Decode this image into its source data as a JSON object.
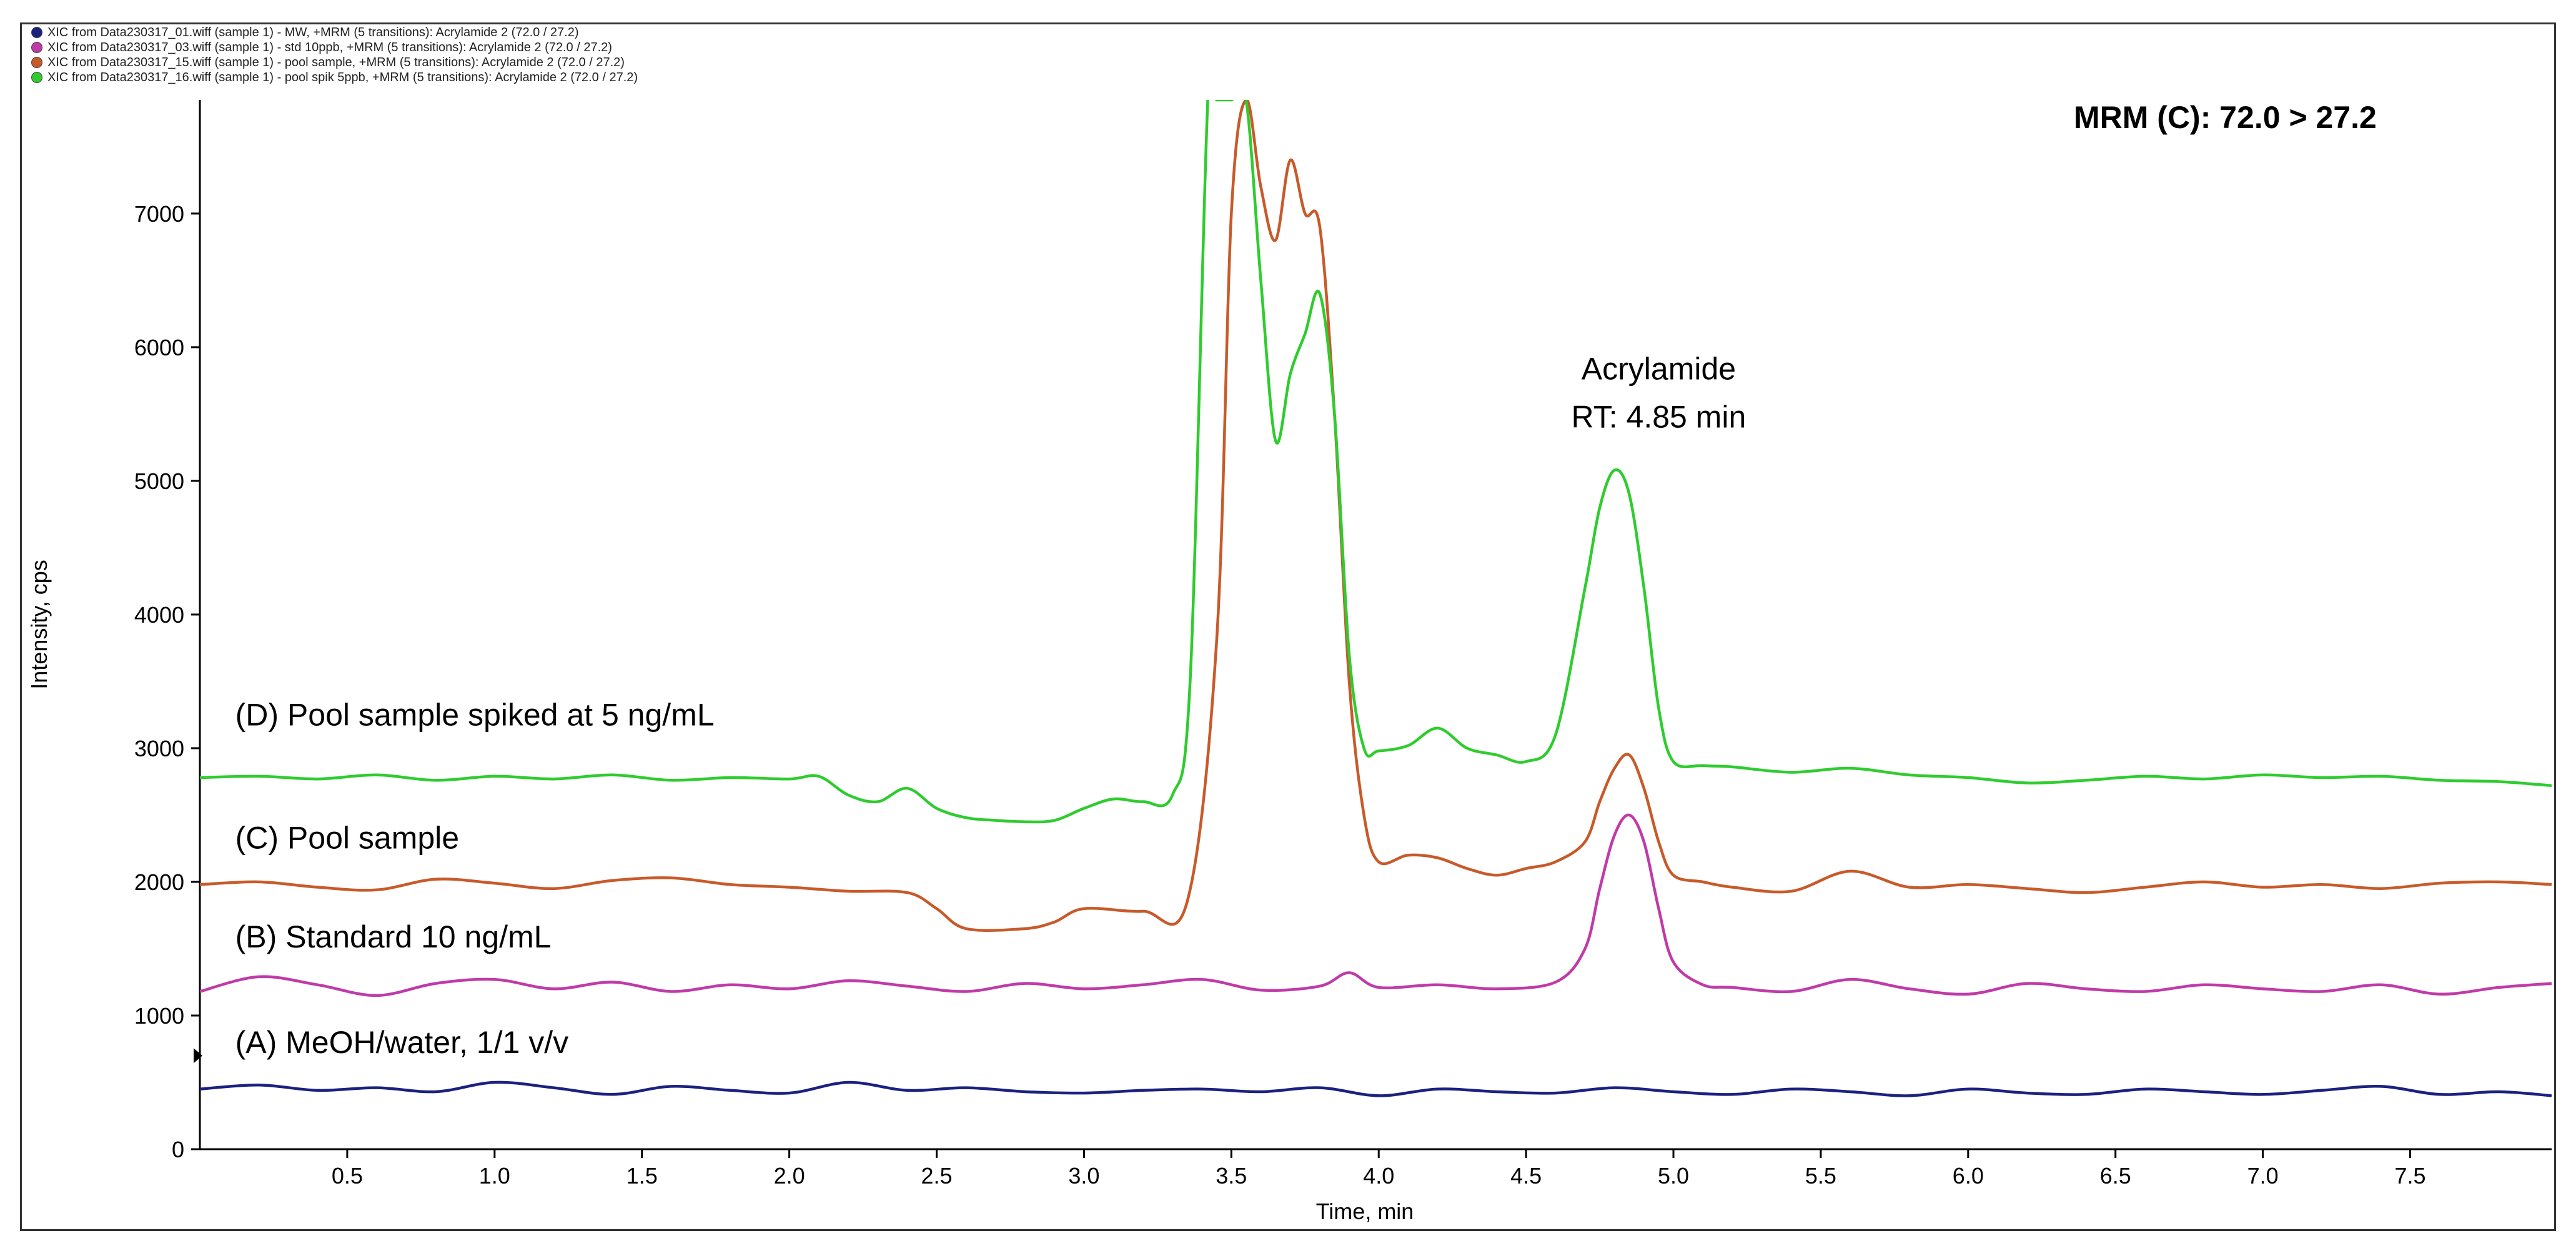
{
  "legend": [
    {
      "text": "XIC from Data230317_01.wiff (sample 1) - MW, +MRM (5 transitions): Acrylamide 2 (72.0 / 27.2)",
      "color": "#1a2180"
    },
    {
      "text": "XIC from Data230317_03.wiff (sample 1) - std 10ppb, +MRM (5 transitions): Acrylamide 2 (72.0 / 27.2)",
      "color": "#c03aa8"
    },
    {
      "text": "XIC from Data230317_15.wiff (sample 1) - pool sample, +MRM (5 transitions): Acrylamide 2 (72.0 / 27.2)",
      "color": "#c85a2a"
    },
    {
      "text": "XIC from Data230317_16.wiff (sample 1) - pool spik 5ppb, +MRM (5 transitions): Acrylamide 2 (72.0 / 27.2)",
      "color": "#2ecc2e"
    }
  ],
  "chart_data": {
    "type": "line",
    "title": "MRM (C): 72.0 > 27.2",
    "xlabel": "Time, min",
    "ylabel": "Intensity, cps",
    "xlim": [
      0,
      7.98
    ],
    "ylim": [
      0,
      7850
    ],
    "x_ticks": [
      0.5,
      1.0,
      1.5,
      2.0,
      2.5,
      3.0,
      3.5,
      4.0,
      4.5,
      5.0,
      5.5,
      6.0,
      6.5,
      7.0,
      7.5
    ],
    "x_tick_labels": [
      "0.5",
      "1.0",
      "1.5",
      "2.0",
      "2.5",
      "3.0",
      "3.5",
      "4.0",
      "4.5",
      "5.0",
      "5.5",
      "6.0",
      "6.5",
      "7.0",
      "7.5"
    ],
    "y_ticks": [
      0,
      1000,
      2000,
      3000,
      4000,
      5000,
      6000,
      7000
    ],
    "y_tick_labels": [
      "0",
      "1000",
      "2000",
      "3000",
      "4000",
      "5000",
      "6000",
      "7000"
    ],
    "grid": false,
    "series": [
      {
        "name": "(A) MeOH/water, 1/1 v/v",
        "color": "#1a2180",
        "x": [
          0,
          0.2,
          0.4,
          0.6,
          0.8,
          1.0,
          1.2,
          1.4,
          1.6,
          1.8,
          2.0,
          2.2,
          2.4,
          2.6,
          2.8,
          3.0,
          3.2,
          3.4,
          3.6,
          3.8,
          4.0,
          4.2,
          4.4,
          4.6,
          4.8,
          5.0,
          5.2,
          5.4,
          5.6,
          5.8,
          6.0,
          6.2,
          6.4,
          6.6,
          6.8,
          7.0,
          7.2,
          7.4,
          7.6,
          7.8,
          7.98
        ],
        "y": [
          450,
          480,
          440,
          460,
          430,
          500,
          460,
          410,
          470,
          440,
          420,
          500,
          440,
          460,
          430,
          420,
          440,
          450,
          430,
          460,
          400,
          450,
          430,
          420,
          460,
          430,
          410,
          450,
          430,
          400,
          450,
          420,
          410,
          450,
          430,
          410,
          440,
          470,
          410,
          430,
          400
        ]
      },
      {
        "name": "(B) Standard 10 ng/mL",
        "color": "#c03aa8",
        "x": [
          0,
          0.2,
          0.4,
          0.6,
          0.8,
          1.0,
          1.2,
          1.4,
          1.6,
          1.8,
          2.0,
          2.2,
          2.4,
          2.6,
          2.8,
          3.0,
          3.2,
          3.4,
          3.6,
          3.8,
          3.9,
          4.0,
          4.2,
          4.4,
          4.6,
          4.7,
          4.75,
          4.8,
          4.85,
          4.9,
          4.95,
          5.0,
          5.1,
          5.2,
          5.4,
          5.6,
          5.8,
          6.0,
          6.2,
          6.4,
          6.6,
          6.8,
          7.0,
          7.2,
          7.4,
          7.6,
          7.8,
          7.98
        ],
        "y": [
          1180,
          1290,
          1230,
          1150,
          1240,
          1270,
          1200,
          1250,
          1180,
          1230,
          1200,
          1260,
          1220,
          1180,
          1240,
          1200,
          1230,
          1270,
          1190,
          1220,
          1320,
          1210,
          1230,
          1200,
          1250,
          1500,
          1950,
          2350,
          2500,
          2300,
          1800,
          1400,
          1230,
          1210,
          1180,
          1270,
          1200,
          1160,
          1240,
          1200,
          1180,
          1230,
          1200,
          1180,
          1230,
          1160,
          1210,
          1240
        ]
      },
      {
        "name": "(C) Pool sample",
        "color": "#c85a2a",
        "x": [
          0,
          0.2,
          0.4,
          0.6,
          0.8,
          1.0,
          1.2,
          1.4,
          1.6,
          1.8,
          2.0,
          2.2,
          2.4,
          2.5,
          2.6,
          2.8,
          2.9,
          3.0,
          3.2,
          3.35,
          3.45,
          3.5,
          3.55,
          3.6,
          3.65,
          3.7,
          3.75,
          3.8,
          3.85,
          3.9,
          3.95,
          4.0,
          4.1,
          4.2,
          4.3,
          4.4,
          4.5,
          4.6,
          4.7,
          4.75,
          4.8,
          4.85,
          4.9,
          4.95,
          5.0,
          5.1,
          5.2,
          5.4,
          5.6,
          5.8,
          6.0,
          6.2,
          6.4,
          6.6,
          6.8,
          7.0,
          7.2,
          7.4,
          7.6,
          7.8,
          7.98
        ],
        "y": [
          1980,
          2000,
          1960,
          1940,
          2020,
          1990,
          1950,
          2010,
          2030,
          1980,
          1960,
          1930,
          1920,
          1800,
          1650,
          1650,
          1700,
          1800,
          1780,
          1850,
          3800,
          7000,
          7850,
          7200,
          6800,
          7400,
          7000,
          6900,
          5500,
          3500,
          2500,
          2150,
          2200,
          2180,
          2100,
          2050,
          2100,
          2150,
          2300,
          2600,
          2850,
          2950,
          2700,
          2300,
          2050,
          2000,
          1960,
          1930,
          2080,
          1960,
          1980,
          1950,
          1920,
          1960,
          2000,
          1960,
          1980,
          1950,
          1990,
          2000,
          1980
        ]
      },
      {
        "name": "(D) Pool sample spiked at 5 ng/mL",
        "color": "#2ecc2e",
        "x": [
          0,
          0.2,
          0.4,
          0.6,
          0.8,
          1.0,
          1.2,
          1.4,
          1.6,
          1.8,
          2.0,
          2.1,
          2.2,
          2.3,
          2.4,
          2.5,
          2.6,
          2.7,
          2.8,
          2.9,
          3.0,
          3.1,
          3.2,
          3.3,
          3.36,
          3.42,
          3.45,
          3.5,
          3.55,
          3.6,
          3.65,
          3.7,
          3.75,
          3.8,
          3.85,
          3.9,
          3.95,
          4.0,
          4.1,
          4.2,
          4.3,
          4.4,
          4.5,
          4.6,
          4.7,
          4.75,
          4.8,
          4.85,
          4.9,
          4.95,
          5.0,
          5.1,
          5.2,
          5.4,
          5.6,
          5.8,
          6.0,
          6.2,
          6.4,
          6.6,
          6.8,
          7.0,
          7.2,
          7.4,
          7.6,
          7.8,
          7.98
        ],
        "y": [
          2780,
          2790,
          2770,
          2800,
          2760,
          2790,
          2770,
          2800,
          2760,
          2780,
          2770,
          2790,
          2650,
          2600,
          2700,
          2550,
          2480,
          2460,
          2450,
          2460,
          2550,
          2620,
          2600,
          2650,
          3500,
          7850,
          7850,
          7850,
          7850,
          6500,
          5300,
          5800,
          6100,
          6400,
          5500,
          3700,
          3000,
          2980,
          3020,
          3150,
          3000,
          2950,
          2900,
          3100,
          4200,
          4800,
          5080,
          4900,
          4200,
          3300,
          2900,
          2870,
          2860,
          2820,
          2850,
          2800,
          2780,
          2740,
          2760,
          2790,
          2770,
          2800,
          2780,
          2790,
          2760,
          2750,
          2720
        ]
      }
    ],
    "series_labels": [
      {
        "text": "(D) Pool sample spiked at 5 ng/mL",
        "x": 0.12,
        "y": 3170
      },
      {
        "text": "(C) Pool sample",
        "x": 0.12,
        "y": 2250
      },
      {
        "text": "(B) Standard 10 ng/mL",
        "x": 0.12,
        "y": 1510
      },
      {
        "text": "(A) MeOH/water, 1/1 v/v",
        "x": 0.12,
        "y": 720
      }
    ],
    "annotations": [
      {
        "text": "Acrylamide",
        "x": 4.95,
        "y": 5760
      },
      {
        "text": "RT: 4.85 min",
        "x": 4.95,
        "y": 5400
      }
    ]
  }
}
